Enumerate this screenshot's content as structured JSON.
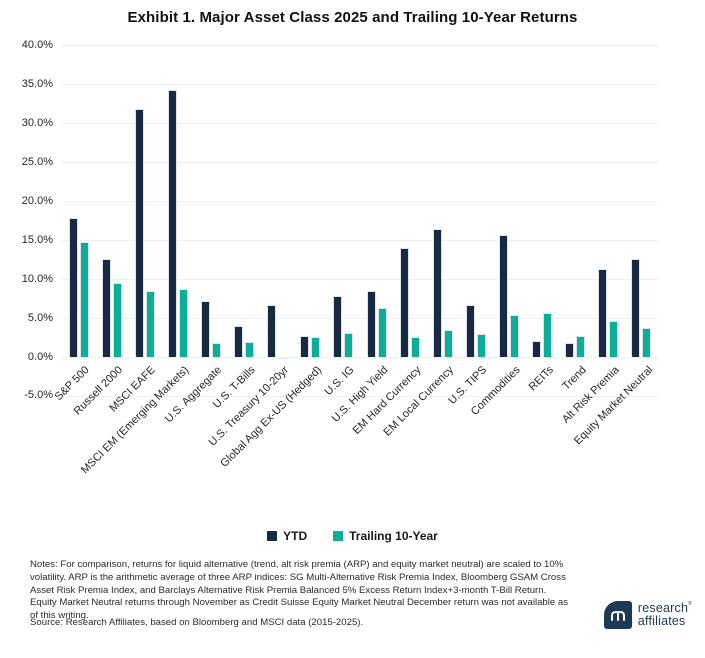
{
  "title": "Exhibit 1. Major Asset Class 2025 and Trailing 10-Year Returns",
  "colors": {
    "ytd_navy": "#162A44",
    "trailing_teal": "#0CAE99",
    "grid": "#EFEFEF",
    "bar_border": "#DFE3E7",
    "tick_text": "#262626",
    "logo_navy": "#1C3A55"
  },
  "chart_data": {
    "type": "bar",
    "title": "Exhibit 1. Major Asset Class 2025 and Trailing 10-Year Returns",
    "categories": [
      "S&P 500",
      "Russell 2000",
      "MSCI EAFE",
      "MSCI EM (Emerging Markets)",
      "U.S. Aggregate",
      "U.S. T-Bills",
      "U.S. Treasury 10-20yr",
      "Global Agg Ex-US (Hedged)",
      "U.S. IG",
      "U.S. High Yield",
      "EM Hard Currency",
      "EM Local Currency",
      "U.S. TIPS",
      "Commodities",
      "REITs",
      "Trend",
      "Alt Risk Premia",
      "Equity Market Neutral"
    ],
    "series": [
      {
        "name": "YTD",
        "color": "#162A44",
        "values": [
          17.9,
          12.7,
          31.9,
          34.4,
          7.2,
          4.0,
          6.7,
          2.8,
          7.9,
          8.5,
          14.1,
          16.5,
          6.8,
          15.7,
          2.1,
          1.8,
          11.4,
          12.6
        ]
      },
      {
        "name": "Trailing 10-Year",
        "color": "#0CAE99",
        "values": [
          14.8,
          9.6,
          8.6,
          8.8,
          1.8,
          2.0,
          -0.2,
          2.6,
          3.2,
          6.4,
          2.6,
          3.5,
          3.0,
          5.5,
          5.7,
          2.8,
          4.7,
          3.8
        ]
      }
    ],
    "ylim": [
      -5,
      40
    ],
    "ytick_step": 5,
    "ytick_labels": [
      "40.0%",
      "35.0%",
      "30.0%",
      "25.0%",
      "20.0%",
      "15.0%",
      "10.0%",
      "5.0%",
      "0.0%",
      "-5.0%"
    ],
    "xlabel": "",
    "ylabel": "",
    "grid": true,
    "legend_position": "bottom"
  },
  "legend": {
    "items": [
      {
        "label": "YTD",
        "color": "#162A44"
      },
      {
        "label": "Trailing 10-Year",
        "color": "#0CAE99"
      }
    ]
  },
  "notes": "Notes: For comparison, returns for liquid alternative (trend, alt risk premia (ARP) and equity market neutral) are scaled to 10% volatility. ARP is the arithmetic average of three ARP indices: SG Multi-Alternative Risk Premia Index, Bloomberg GSAM Cross Asset Risk Premia Index, and Barclays Alternative Risk Premia Balanced 5% Excess Return Index+3-month T-Bill Return. Equity Market Neutral returns through November as Credit Suisse Equity Market Neutral December return was not available as of this writing.",
  "source": "Source: Research Affiliates, based on Bloomberg and MSCI data (2015-2025).",
  "logo": {
    "line1": "research",
    "line2": "affiliates",
    "trademark": "®"
  }
}
